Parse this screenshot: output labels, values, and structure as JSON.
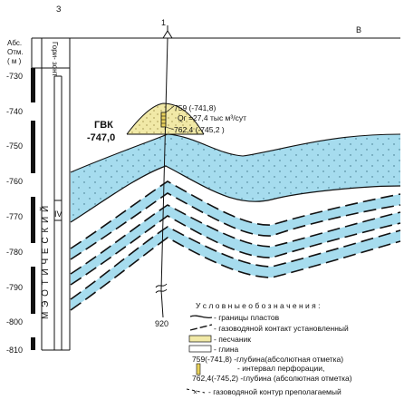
{
  "header": {
    "dir_left": "З",
    "dir_right": "В",
    "well_top": "1",
    "well_bottom": "920",
    "abs_label": [
      "Абс.",
      "Отм.",
      "( м )"
    ],
    "horizon_label": "Гори- зонт"
  },
  "depth_axis": {
    "ticks": [
      "-730",
      "-740",
      "-750",
      "-760",
      "-770",
      "-780",
      "-790",
      "-800",
      "-810"
    ]
  },
  "stratigraphy": {
    "stage": "М Э О Т И Ч Е С К И Й",
    "horizon": "IV"
  },
  "annotations": {
    "gvk_title": "ГВК",
    "gvk_value": "-747,0",
    "depth_top": "759 (-741,8)",
    "flow_rate": "Qг =27,4 тыс м³/сут",
    "depth_bottom": "762,4 (-745,2 )"
  },
  "legend": {
    "title": "У с л о в н ы е   о б о з н а ч е н и я :",
    "items": [
      {
        "icon": "boundary-line",
        "text": "- границы  пластов"
      },
      {
        "icon": "gwc-established",
        "text": "- газоводяной контакт установленный"
      },
      {
        "icon": "sandstone-swatch",
        "text": "- песчаник"
      },
      {
        "icon": "clay-swatch",
        "text": "- глина"
      },
      {
        "icon": "depth-label",
        "text": "759(-741,8)      -глубина(абсолютная отметка)"
      },
      {
        "icon": "perforation-icon",
        "text": "- интервал перфорации,"
      },
      {
        "icon": "depth-label",
        "text": "762,4(-745,2)  -глубина (абсолютная отметка)"
      },
      {
        "icon": "gwc-assumed",
        "text": "- газоводяной контур  преполагаемый"
      }
    ]
  },
  "colors": {
    "water": "#a6dcee",
    "gas": "#f1e9a7",
    "line": "#111111"
  }
}
